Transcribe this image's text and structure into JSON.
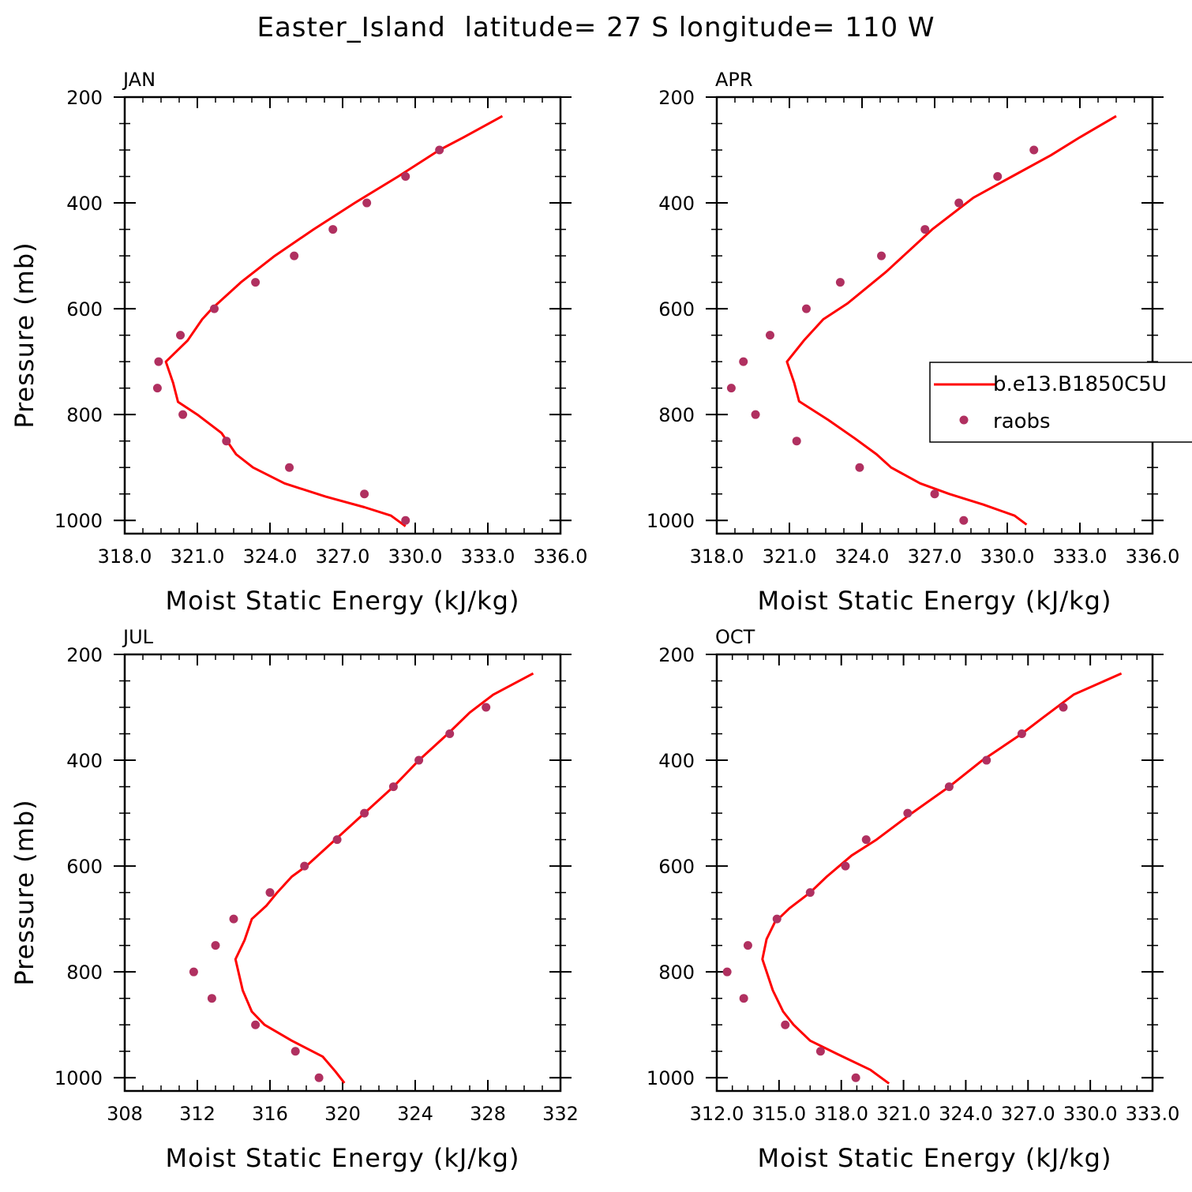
{
  "title": "Easter_Island  latitude= 27 S longitude= 110 W",
  "colors": {
    "model": "#ff0000",
    "obs": "#b03060",
    "axis": "#000000"
  },
  "legend": {
    "model_label": "b.e13.B1850C5U",
    "obs_label": "raobs"
  },
  "chart_data": [
    {
      "type": "line",
      "panel_label": "JAN",
      "xlabel": "Moist Static Energy (kJ/kg)",
      "ylabel": "Pressure (mb)",
      "xlim": [
        318,
        336
      ],
      "ylim": [
        1025,
        200
      ],
      "x_ticks": [
        318,
        321,
        324,
        327,
        330,
        333,
        336
      ],
      "x_tick_labels": [
        "318.0",
        "321.0",
        "324.0",
        "327.0",
        "330.0",
        "333.0",
        "336.0"
      ],
      "y_ticks": [
        200,
        400,
        600,
        800,
        1000
      ],
      "y_tick_labels": [
        "200",
        "400",
        "600",
        "800",
        "1000"
      ],
      "series": [
        {
          "name": "b.e13.B1850C5U",
          "kind": "line",
          "points": [
            [
              333.6,
              236
            ],
            [
              332.0,
              276
            ],
            [
              331.0,
              300
            ],
            [
              329.3,
              350
            ],
            [
              327.5,
              400
            ],
            [
              325.8,
              450
            ],
            [
              324.2,
              500
            ],
            [
              322.8,
              550
            ],
            [
              321.6,
              600
            ],
            [
              321.2,
              620
            ],
            [
              320.6,
              660
            ],
            [
              319.7,
              700
            ],
            [
              320.0,
              740
            ],
            [
              320.2,
              776
            ],
            [
              321.0,
              800
            ],
            [
              322.0,
              835
            ],
            [
              322.6,
              875
            ],
            [
              323.3,
              900
            ],
            [
              324.6,
              930
            ],
            [
              326.3,
              955
            ],
            [
              327.9,
              975
            ],
            [
              329.0,
              991
            ],
            [
              329.6,
              1011
            ]
          ]
        },
        {
          "name": "raobs",
          "kind": "scatter",
          "points": [
            [
              331.0,
              300
            ],
            [
              329.6,
              350
            ],
            [
              328.0,
              400
            ],
            [
              326.6,
              450
            ],
            [
              325.0,
              500
            ],
            [
              323.4,
              550
            ],
            [
              321.7,
              600
            ],
            [
              320.3,
              650
            ],
            [
              319.4,
              700
            ],
            [
              319.35,
              750
            ],
            [
              320.4,
              800
            ],
            [
              322.2,
              850
            ],
            [
              324.8,
              900
            ],
            [
              327.9,
              950
            ],
            [
              329.6,
              1000
            ]
          ]
        }
      ]
    },
    {
      "type": "line",
      "panel_label": "APR",
      "xlabel": "Moist Static Energy (kJ/kg)",
      "ylabel": "",
      "xlim": [
        318,
        336
      ],
      "ylim": [
        1025,
        200
      ],
      "x_ticks": [
        318,
        321,
        324,
        327,
        330,
        333,
        336
      ],
      "x_tick_labels": [
        "318.0",
        "321.0",
        "324.0",
        "327.0",
        "330.0",
        "333.0",
        "336.0"
      ],
      "y_ticks": [
        200,
        400,
        600,
        800,
        1000
      ],
      "y_tick_labels": [
        "200",
        "400",
        "600",
        "800",
        "1000"
      ],
      "series": [
        {
          "name": "b.e13.B1850C5U",
          "kind": "line",
          "points": [
            [
              334.5,
              236
            ],
            [
              333.0,
              276
            ],
            [
              331.8,
              310
            ],
            [
              330.2,
              350
            ],
            [
              328.6,
              390
            ],
            [
              326.9,
              450
            ],
            [
              325.0,
              530
            ],
            [
              323.4,
              590
            ],
            [
              322.4,
              620
            ],
            [
              321.6,
              660
            ],
            [
              320.9,
              700
            ],
            [
              321.2,
              740
            ],
            [
              321.4,
              775
            ],
            [
              322.6,
              810
            ],
            [
              323.7,
              845
            ],
            [
              324.6,
              875
            ],
            [
              325.2,
              900
            ],
            [
              326.4,
              930
            ],
            [
              327.6,
              950
            ],
            [
              329.0,
              970
            ],
            [
              330.3,
              991
            ],
            [
              330.8,
              1008
            ]
          ]
        },
        {
          "name": "raobs",
          "kind": "scatter",
          "points": [
            [
              331.1,
              300
            ],
            [
              329.6,
              350
            ],
            [
              328.0,
              400
            ],
            [
              326.6,
              450
            ],
            [
              324.8,
              500
            ],
            [
              323.1,
              550
            ],
            [
              321.7,
              600
            ],
            [
              320.2,
              650
            ],
            [
              319.1,
              700
            ],
            [
              318.6,
              750
            ],
            [
              319.6,
              800
            ],
            [
              321.3,
              850
            ],
            [
              323.9,
              900
            ],
            [
              327.0,
              950
            ],
            [
              328.2,
              1000
            ]
          ]
        }
      ]
    },
    {
      "type": "line",
      "panel_label": "JUL",
      "xlabel": "Moist Static Energy (kJ/kg)",
      "ylabel": "Pressure (mb)",
      "xlim": [
        308,
        332
      ],
      "ylim": [
        1025,
        200
      ],
      "x_ticks": [
        308,
        312,
        316,
        320,
        324,
        328,
        332
      ],
      "x_tick_labels": [
        "308",
        "312",
        "316",
        "320",
        "324",
        "328",
        "332"
      ],
      "y_ticks": [
        200,
        400,
        600,
        800,
        1000
      ],
      "y_tick_labels": [
        "200",
        "400",
        "600",
        "800",
        "1000"
      ],
      "series": [
        {
          "name": "b.e13.B1850C5U",
          "kind": "line",
          "points": [
            [
              330.5,
              236
            ],
            [
              328.3,
              276
            ],
            [
              327.0,
              310
            ],
            [
              325.8,
              350
            ],
            [
              324.2,
              400
            ],
            [
              322.8,
              450
            ],
            [
              321.2,
              500
            ],
            [
              319.6,
              550
            ],
            [
              318.0,
              600
            ],
            [
              317.2,
              620
            ],
            [
              316.4,
              650
            ],
            [
              315.8,
              675
            ],
            [
              315.0,
              700
            ],
            [
              314.6,
              740
            ],
            [
              314.1,
              776
            ],
            [
              314.5,
              835
            ],
            [
              315.0,
              875
            ],
            [
              315.7,
              900
            ],
            [
              317.2,
              930
            ],
            [
              318.9,
              960
            ],
            [
              319.6,
              988
            ],
            [
              320.1,
              1010
            ]
          ]
        },
        {
          "name": "raobs",
          "kind": "scatter",
          "points": [
            [
              327.9,
              300
            ],
            [
              325.9,
              350
            ],
            [
              324.2,
              400
            ],
            [
              322.8,
              450
            ],
            [
              321.2,
              500
            ],
            [
              319.7,
              550
            ],
            [
              317.9,
              600
            ],
            [
              316.0,
              650
            ],
            [
              314.0,
              700
            ],
            [
              313.0,
              750
            ],
            [
              311.8,
              800
            ],
            [
              312.8,
              850
            ],
            [
              315.2,
              900
            ],
            [
              317.4,
              950
            ],
            [
              318.7,
              1000
            ]
          ]
        }
      ]
    },
    {
      "type": "line",
      "panel_label": "OCT",
      "xlabel": "Moist Static Energy (kJ/kg)",
      "ylabel": "",
      "xlim": [
        312,
        333
      ],
      "ylim": [
        1025,
        200
      ],
      "x_ticks": [
        312,
        315,
        318,
        321,
        324,
        327,
        330,
        333
      ],
      "x_tick_labels": [
        "312.0",
        "315.0",
        "318.0",
        "321.0",
        "324.0",
        "327.0",
        "330.0",
        "333.0"
      ],
      "y_ticks": [
        200,
        400,
        600,
        800,
        1000
      ],
      "y_tick_labels": [
        "200",
        "400",
        "600",
        "800",
        "1000"
      ],
      "series": [
        {
          "name": "b.e13.B1850C5U",
          "kind": "line",
          "points": [
            [
              331.5,
              236
            ],
            [
              329.2,
              276
            ],
            [
              327.7,
              320
            ],
            [
              326.7,
              350
            ],
            [
              324.8,
              400
            ],
            [
              323.2,
              450
            ],
            [
              321.4,
              500
            ],
            [
              319.7,
              550
            ],
            [
              318.5,
              580
            ],
            [
              317.3,
              620
            ],
            [
              316.5,
              650
            ],
            [
              315.5,
              680
            ],
            [
              314.8,
              706
            ],
            [
              314.4,
              738
            ],
            [
              314.2,
              776
            ],
            [
              314.7,
              835
            ],
            [
              315.2,
              875
            ],
            [
              315.7,
              900
            ],
            [
              316.5,
              930
            ],
            [
              317.8,
              955
            ],
            [
              319.4,
              985
            ],
            [
              320.3,
              1011
            ]
          ]
        },
        {
          "name": "raobs",
          "kind": "scatter",
          "points": [
            [
              328.7,
              300
            ],
            [
              326.7,
              350
            ],
            [
              325.0,
              400
            ],
            [
              323.2,
              450
            ],
            [
              321.2,
              500
            ],
            [
              319.2,
              550
            ],
            [
              318.2,
              600
            ],
            [
              316.5,
              650
            ],
            [
              314.9,
              700
            ],
            [
              313.5,
              750
            ],
            [
              312.5,
              800
            ],
            [
              313.3,
              850
            ],
            [
              315.3,
              900
            ],
            [
              317.0,
              950
            ],
            [
              318.7,
              1000
            ]
          ]
        }
      ]
    }
  ]
}
